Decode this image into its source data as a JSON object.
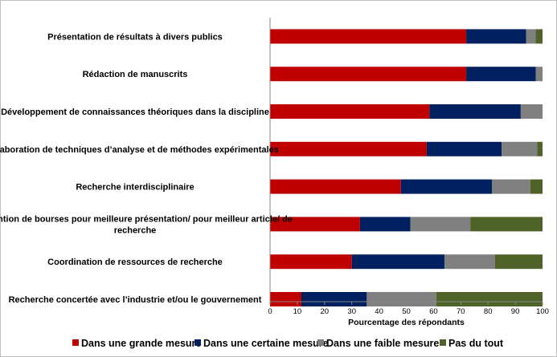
{
  "chart_data": {
    "type": "bar",
    "orientation": "horizontal",
    "stacked": true,
    "categories": [
      [
        "Présentation de résultats à divers publics"
      ],
      [
        "Rédaction de manuscrits"
      ],
      [
        "Développement de connaissances théoriques dans la discipline"
      ],
      [
        "Élaboration de techniques d’analyse et de méthodes expérimentales"
      ],
      [
        "Recherche interdisciplinaire"
      ],
      [
        "Obtention de bourses pour meilleure présentation/ pour meilleur article/ de",
        "recherche"
      ],
      [
        "Coordination de ressources de recherche"
      ],
      [
        "Recherche concertée avec l’industrie et/ou le gouvernement"
      ]
    ],
    "series": [
      {
        "name": "Dans une grande mesure",
        "color": "#c00000",
        "values": [
          72,
          72,
          58.5,
          57.5,
          48,
          33,
          30,
          11.5
        ]
      },
      {
        "name": "Dans une certaine mesure",
        "color": "#002060",
        "values": [
          22,
          25.5,
          33.5,
          27.5,
          33.5,
          18.5,
          34,
          24
        ]
      },
      {
        "name": "Dans une faible mesure",
        "color": "#808080",
        "values": [
          3.5,
          2.5,
          8,
          13,
          14,
          22,
          18.5,
          25.5
        ]
      },
      {
        "name": "Pas du tout",
        "color": "#4f6228",
        "values": [
          2.5,
          0,
          0,
          2,
          4.5,
          26.5,
          17.5,
          39
        ]
      }
    ],
    "xlabel": "Pourcentage des répondants",
    "xlim": [
      0,
      100
    ],
    "xticks": [
      "0",
      "10",
      "20",
      "30",
      "40",
      "50",
      "60",
      "70",
      "80",
      "90",
      "100"
    ],
    "grid": false,
    "legend_position": "bottom"
  }
}
